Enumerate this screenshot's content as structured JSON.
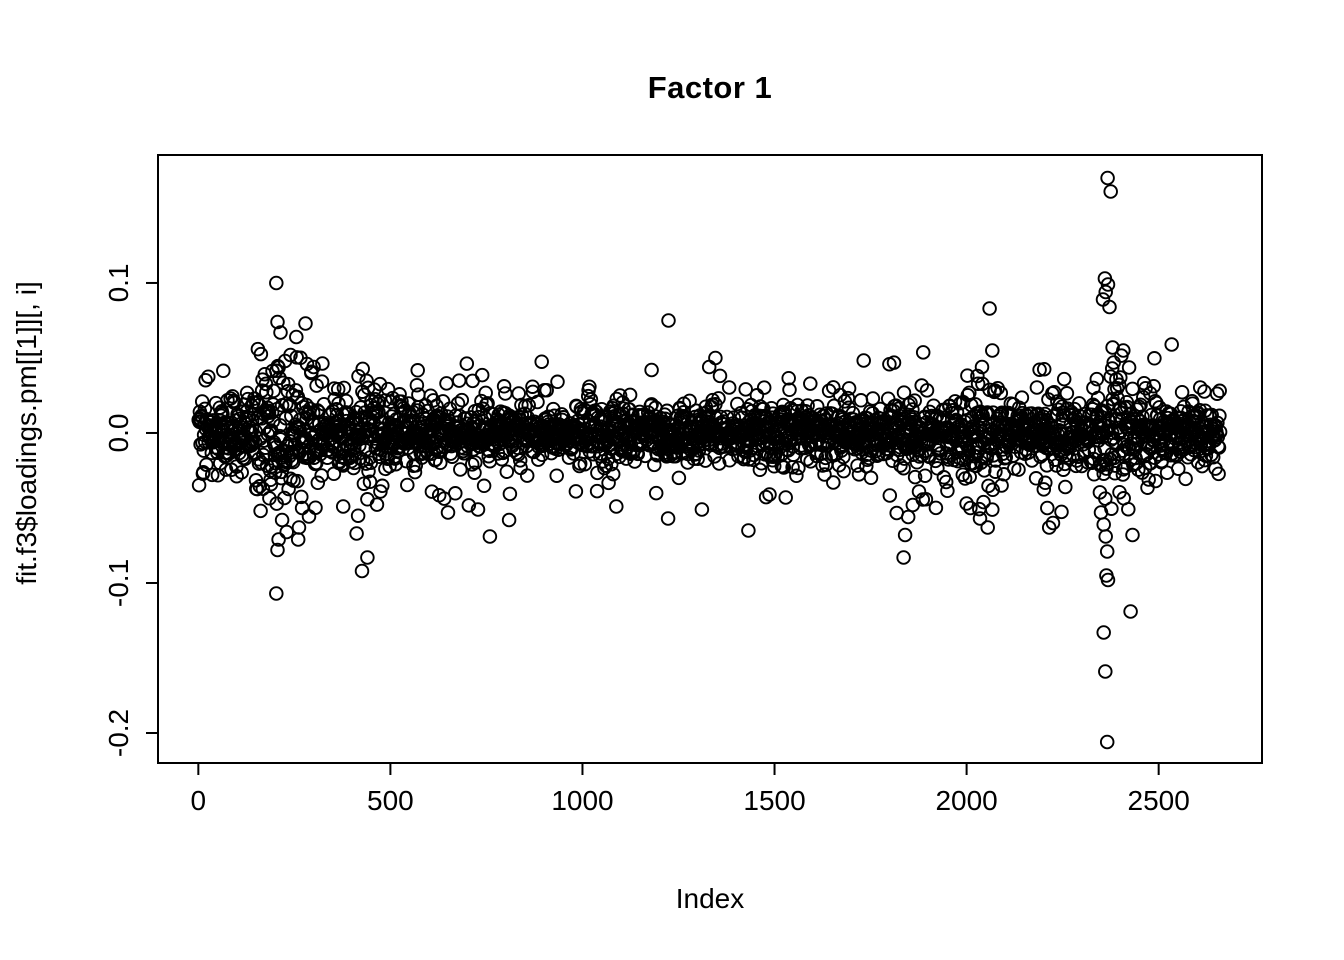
{
  "figure": {
    "background_color": "#ffffff",
    "foreground_color": "#000000"
  },
  "chart_data": {
    "type": "scatter",
    "title": "Factor 1",
    "xlabel": "Index",
    "ylabel": "fit.f3$loadings.pm[[1]][, i]",
    "grid": false,
    "legend": null,
    "xlim": [
      -105,
      2769
    ],
    "ylim": [
      -0.22,
      0.1853
    ],
    "x_ticks": [
      {
        "value": 0,
        "label": "0"
      },
      {
        "value": 500,
        "label": "500"
      },
      {
        "value": 1000,
        "label": "1000"
      },
      {
        "value": 1500,
        "label": "1500"
      },
      {
        "value": 2000,
        "label": "2000"
      },
      {
        "value": 2500,
        "label": "2500"
      }
    ],
    "y_ticks": [
      {
        "value": 0.1,
        "label": "0.1"
      },
      {
        "value": 0.0,
        "label": "0.0"
      },
      {
        "value": -0.1,
        "label": "-0.1"
      },
      {
        "value": -0.2,
        "label": "-0.2"
      }
    ],
    "n_points": 2660,
    "marker": {
      "shape": "open-circle",
      "color": "#000000",
      "radius_px": 6.3,
      "stroke_px": 1.9
    },
    "noise_mixture": [
      {
        "weight": 0.62,
        "sd": 0.0085
      },
      {
        "weight": 0.28,
        "sd": 0.014
      },
      {
        "weight": 0.08,
        "sd": 0.021
      },
      {
        "weight": 0.02,
        "sd": 0.03
      }
    ],
    "variance_regions": [
      {
        "from": 0,
        "to": 150,
        "mult": 1.35
      },
      {
        "from": 150,
        "to": 330,
        "mult": 2.1
      },
      {
        "from": 330,
        "to": 500,
        "mult": 1.35
      },
      {
        "from": 500,
        "to": 700,
        "mult": 1.15
      },
      {
        "from": 1800,
        "to": 1900,
        "mult": 1.35
      },
      {
        "from": 1990,
        "to": 2100,
        "mult": 1.5
      },
      {
        "from": 2200,
        "to": 2260,
        "mult": 1.2
      },
      {
        "from": 2330,
        "to": 2410,
        "mult": 1.9
      },
      {
        "from": 2410,
        "to": 2500,
        "mult": 1.25
      }
    ],
    "outliers": [
      [
        203,
        0.1
      ],
      [
        206,
        0.074
      ],
      [
        279,
        0.073
      ],
      [
        214,
        0.067
      ],
      [
        255,
        0.064
      ],
      [
        240,
        0.052
      ],
      [
        226,
        0.048
      ],
      [
        283,
        0.046
      ],
      [
        300,
        0.044
      ],
      [
        294,
        0.04
      ],
      [
        203,
        -0.107
      ],
      [
        206,
        -0.078
      ],
      [
        209,
        -0.071
      ],
      [
        260,
        -0.071
      ],
      [
        262,
        -0.063
      ],
      [
        230,
        -0.066
      ],
      [
        218,
        -0.058
      ],
      [
        426,
        -0.092
      ],
      [
        440,
        -0.083
      ],
      [
        412,
        -0.067
      ],
      [
        377,
        -0.049
      ],
      [
        650,
        -0.053
      ],
      [
        728,
        -0.051
      ],
      [
        759,
        -0.069
      ],
      [
        809,
        -0.058
      ],
      [
        1088,
        -0.049
      ],
      [
        1223,
        -0.057
      ],
      [
        1311,
        -0.051
      ],
      [
        1432,
        -0.065
      ],
      [
        1487,
        -0.041
      ],
      [
        1653,
        -0.033
      ],
      [
        1224,
        0.075
      ],
      [
        1346,
        0.05
      ],
      [
        1330,
        0.044
      ],
      [
        1180,
        0.042
      ],
      [
        1836,
        -0.083
      ],
      [
        1840,
        -0.068
      ],
      [
        1848,
        -0.056
      ],
      [
        1860,
        -0.048
      ],
      [
        2060,
        0.083
      ],
      [
        2067,
        0.055
      ],
      [
        2040,
        0.044
      ],
      [
        2028,
        0.038
      ],
      [
        2010,
        -0.05
      ],
      [
        2035,
        -0.057
      ],
      [
        2055,
        -0.063
      ],
      [
        2000,
        -0.047
      ],
      [
        2210,
        -0.05
      ],
      [
        2225,
        -0.06
      ],
      [
        2215,
        -0.063
      ],
      [
        2367,
        0.17
      ],
      [
        2375,
        0.161
      ],
      [
        2360,
        0.103
      ],
      [
        2368,
        0.099
      ],
      [
        2362,
        0.094
      ],
      [
        2355,
        0.089
      ],
      [
        2372,
        0.084
      ],
      [
        2380,
        0.057
      ],
      [
        2408,
        0.055
      ],
      [
        2383,
        0.047
      ],
      [
        2379,
        0.043
      ],
      [
        2400,
        0.037
      ],
      [
        2350,
        -0.053
      ],
      [
        2357,
        -0.061
      ],
      [
        2362,
        -0.069
      ],
      [
        2366,
        -0.079
      ],
      [
        2364,
        -0.095
      ],
      [
        2368,
        -0.098
      ],
      [
        2427,
        -0.119
      ],
      [
        2357,
        -0.133
      ],
      [
        2361,
        -0.159
      ],
      [
        2366,
        -0.206
      ],
      [
        2432,
        -0.068
      ],
      [
        2474,
        -0.031
      ],
      [
        2534,
        0.059
      ]
    ]
  }
}
